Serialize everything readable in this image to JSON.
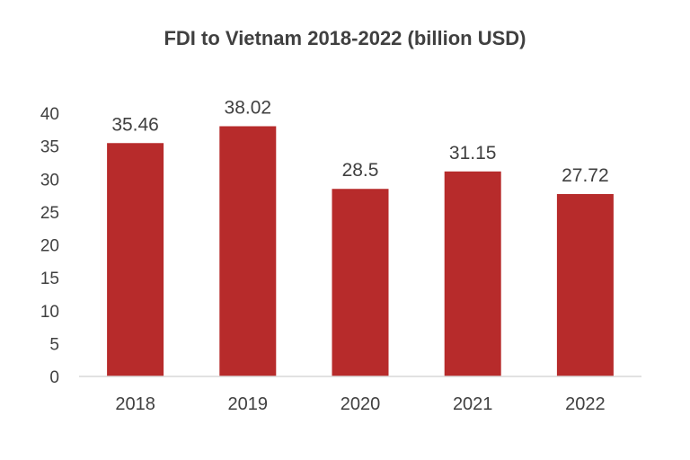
{
  "chart_data": {
    "type": "bar",
    "title": "FDI to Vietnam 2018-2022 (billion USD)",
    "xlabel": "",
    "ylabel": "",
    "categories": [
      "2018",
      "2019",
      "2020",
      "2021",
      "2022"
    ],
    "values": [
      35.46,
      38.02,
      28.5,
      31.15,
      27.72
    ],
    "data_labels": [
      "35.46",
      "38.02",
      "28.5",
      "31.15",
      "27.72"
    ],
    "yticks": [
      "0",
      "5",
      "10",
      "15",
      "20",
      "25",
      "30",
      "35",
      "40"
    ],
    "ylim": [
      0,
      40
    ],
    "grid": false,
    "legend": "none",
    "bar_color": "#B72B2B",
    "axis_color": "#D9D9D9",
    "text_color": "#404040"
  }
}
